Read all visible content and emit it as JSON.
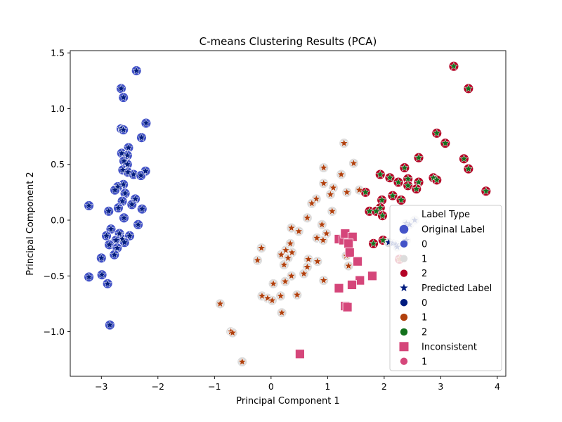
{
  "chart_data": {
    "type": "scatter",
    "title": "C-means Clustering Results (PCA)",
    "xlabel": "Principal Component 1",
    "ylabel": "Principal Component 2",
    "xlim": [
      -3.55,
      4.15
    ],
    "ylim": [
      -1.4,
      1.52
    ],
    "xticks": [
      -3,
      -2,
      -1,
      0,
      1,
      2,
      3,
      4
    ],
    "xtick_labels": [
      "−3",
      "−2",
      "−1",
      "0",
      "1",
      "2",
      "3",
      "4"
    ],
    "yticks": [
      -1.0,
      -0.5,
      0.0,
      0.5,
      1.0,
      1.5
    ],
    "ytick_labels": [
      "−1.0",
      "−0.5",
      "0.0",
      "0.5",
      "1.0",
      "1.5"
    ],
    "grid": false,
    "legend": {
      "placement": "lower-right",
      "title": "Label Type",
      "entries": [
        {
          "label": "Original Label",
          "kind": "header-circle",
          "color": "#4353c8"
        },
        {
          "label": "0",
          "kind": "circle",
          "color": "#4353c8"
        },
        {
          "label": "1",
          "kind": "circle",
          "color": "#dcdcdc"
        },
        {
          "label": "2",
          "kind": "circle",
          "color": "#b40426"
        },
        {
          "label": "Predicted Label",
          "kind": "header-star",
          "color": "#001c7f"
        },
        {
          "label": "0",
          "kind": "circle",
          "color": "#001c7f"
        },
        {
          "label": "1",
          "kind": "circle",
          "color": "#b1400d"
        },
        {
          "label": "2",
          "kind": "circle",
          "color": "#12711c"
        },
        {
          "label": "Inconsistent",
          "kind": "header-square",
          "color": "#d5467a"
        },
        {
          "label": "1",
          "kind": "circle",
          "color": "#d5467a"
        }
      ]
    },
    "colors": {
      "original_0": "#4353c8",
      "original_1": "#dcdcdc",
      "original_2": "#b40426",
      "predicted_0": "#001c7f",
      "predicted_1": "#b1400d",
      "predicted_2": "#12711c",
      "inconsistent": "#d5467a"
    },
    "series": [
      {
        "original": 0,
        "predicted": 0,
        "points": [
          [
            -2.38,
            1.34
          ],
          [
            -2.65,
            1.18
          ],
          [
            -2.61,
            1.1
          ],
          [
            -2.65,
            0.82
          ],
          [
            -2.61,
            0.81
          ],
          [
            -2.21,
            0.87
          ],
          [
            -2.29,
            0.74
          ],
          [
            -2.52,
            0.65
          ],
          [
            -2.64,
            0.6
          ],
          [
            -2.54,
            0.58
          ],
          [
            -2.6,
            0.53
          ],
          [
            -2.54,
            0.5
          ],
          [
            -2.62,
            0.45
          ],
          [
            -2.53,
            0.43
          ],
          [
            -2.43,
            0.41
          ],
          [
            -2.22,
            0.44
          ],
          [
            -2.3,
            0.4
          ],
          [
            -2.61,
            0.32
          ],
          [
            -2.71,
            0.3
          ],
          [
            -2.76,
            0.27
          ],
          [
            -2.58,
            0.24
          ],
          [
            -2.63,
            0.17
          ],
          [
            -2.4,
            0.19
          ],
          [
            -2.46,
            0.14
          ],
          [
            -2.7,
            0.11
          ],
          [
            -2.28,
            0.1
          ],
          [
            -2.87,
            0.08
          ],
          [
            -3.22,
            0.13
          ],
          [
            -2.6,
            0.02
          ],
          [
            -2.35,
            -0.04
          ],
          [
            -2.83,
            -0.08
          ],
          [
            -2.91,
            -0.14
          ],
          [
            -2.68,
            -0.12
          ],
          [
            -2.63,
            -0.17
          ],
          [
            -2.5,
            -0.14
          ],
          [
            -2.74,
            -0.18
          ],
          [
            -2.86,
            -0.22
          ],
          [
            -2.59,
            -0.2
          ],
          [
            -2.72,
            -0.25
          ],
          [
            -2.77,
            -0.31
          ],
          [
            -3.0,
            -0.34
          ],
          [
            -3.22,
            -0.51
          ],
          [
            -2.99,
            -0.49
          ],
          [
            -2.89,
            -0.57
          ],
          [
            -2.85,
            -0.94
          ]
        ]
      },
      {
        "original": 1,
        "predicted": 1,
        "points": [
          [
            1.29,
            0.69
          ],
          [
            1.46,
            0.51
          ],
          [
            0.93,
            0.47
          ],
          [
            1.24,
            0.41
          ],
          [
            0.93,
            0.33
          ],
          [
            1.1,
            0.29
          ],
          [
            1.05,
            0.23
          ],
          [
            1.34,
            0.25
          ],
          [
            1.56,
            0.27
          ],
          [
            0.8,
            0.19
          ],
          [
            0.72,
            0.15
          ],
          [
            1.08,
            0.08
          ],
          [
            0.64,
            0.02
          ],
          [
            0.9,
            -0.04
          ],
          [
            0.36,
            -0.07
          ],
          [
            0.49,
            -0.1
          ],
          [
            0.98,
            -0.12
          ],
          [
            0.81,
            -0.16
          ],
          [
            0.92,
            -0.18
          ],
          [
            0.34,
            -0.21
          ],
          [
            -0.17,
            -0.25
          ],
          [
            0.26,
            -0.27
          ],
          [
            0.37,
            -0.29
          ],
          [
            0.18,
            -0.31
          ],
          [
            0.3,
            -0.34
          ],
          [
            0.66,
            -0.35
          ],
          [
            -0.24,
            -0.36
          ],
          [
            0.82,
            -0.37
          ],
          [
            0.23,
            -0.4
          ],
          [
            0.64,
            -0.42
          ],
          [
            1.37,
            -0.41
          ],
          [
            0.58,
            -0.48
          ],
          [
            0.36,
            -0.5
          ],
          [
            0.25,
            -0.55
          ],
          [
            0.04,
            -0.57
          ],
          [
            0.93,
            -0.54
          ],
          [
            -0.16,
            -0.68
          ],
          [
            0.46,
            -0.67
          ],
          [
            0.17,
            -0.68
          ],
          [
            -0.06,
            -0.7
          ],
          [
            0.02,
            -0.72
          ],
          [
            -0.9,
            -0.75
          ],
          [
            0.19,
            -0.83
          ],
          [
            -0.71,
            -1.0
          ],
          [
            -0.68,
            -1.01
          ],
          [
            -0.51,
            -1.27
          ],
          [
            1.33,
            -0.32
          ]
        ]
      },
      {
        "original": 2,
        "predicted": 2,
        "points": [
          [
            3.23,
            1.38
          ],
          [
            3.49,
            1.18
          ],
          [
            2.93,
            0.78
          ],
          [
            3.08,
            0.69
          ],
          [
            2.61,
            0.56
          ],
          [
            3.41,
            0.55
          ],
          [
            3.49,
            0.46
          ],
          [
            2.36,
            0.47
          ],
          [
            1.93,
            0.41
          ],
          [
            2.1,
            0.38
          ],
          [
            2.42,
            0.37
          ],
          [
            2.25,
            0.34
          ],
          [
            2.61,
            0.34
          ],
          [
            2.87,
            0.38
          ],
          [
            2.93,
            0.36
          ],
          [
            2.42,
            0.31
          ],
          [
            2.57,
            0.28
          ],
          [
            1.67,
            0.25
          ],
          [
            2.15,
            0.22
          ],
          [
            3.8,
            0.26
          ],
          [
            2.3,
            0.18
          ],
          [
            1.96,
            0.18
          ],
          [
            1.93,
            0.11
          ],
          [
            1.74,
            0.08
          ],
          [
            1.86,
            0.08
          ],
          [
            1.97,
            0.04
          ],
          [
            1.81,
            -0.21
          ],
          [
            1.98,
            -0.18
          ]
        ]
      },
      {
        "original": 1,
        "predicted": 0,
        "points": [
          [
            2.39,
            -0.03
          ],
          [
            2.45,
            -0.04
          ],
          [
            2.54,
            0.0
          ],
          [
            2.15,
            -0.21
          ],
          [
            2.21,
            -0.22
          ],
          [
            2.39,
            -0.18
          ],
          [
            2.23,
            -0.24
          ],
          [
            2.08,
            -0.2
          ]
        ]
      },
      {
        "original": 2,
        "predicted": 1,
        "points": [
          [
            2.27,
            -0.35
          ]
        ]
      }
    ],
    "inconsistent_points": [
      [
        1.2,
        -0.17
      ],
      [
        1.28,
        -0.18
      ],
      [
        1.31,
        -0.12
      ],
      [
        1.44,
        -0.15
      ],
      [
        1.37,
        -0.21
      ],
      [
        1.39,
        -0.29
      ],
      [
        1.53,
        -0.37
      ],
      [
        1.79,
        -0.5
      ],
      [
        1.57,
        -0.54
      ],
      [
        1.43,
        -0.58
      ],
      [
        1.2,
        -0.61
      ],
      [
        1.31,
        -0.77
      ],
      [
        1.35,
        -0.78
      ],
      [
        0.51,
        -1.2
      ]
    ]
  }
}
